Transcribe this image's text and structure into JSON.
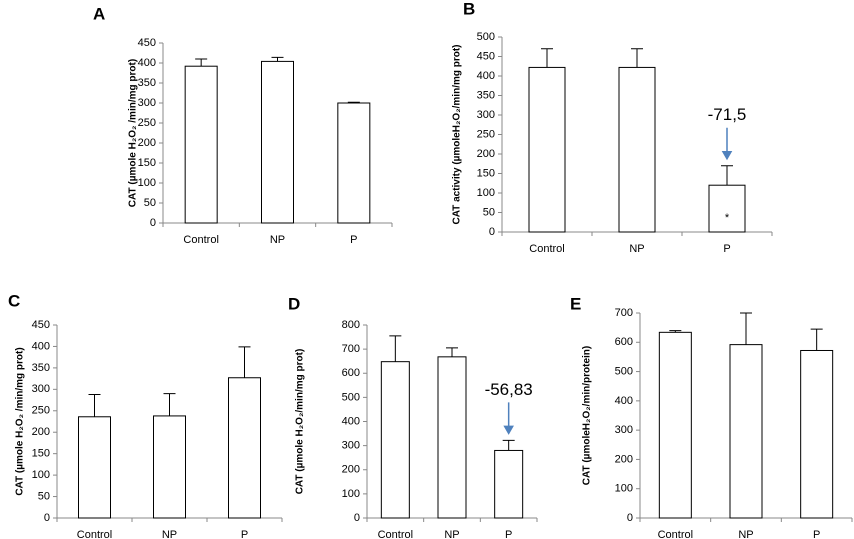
{
  "chart_data": [
    {
      "type": "bar",
      "panel": "A",
      "ylabel": "CAT (µmole H₂O₂ /min/mg prot)",
      "categories": [
        "Control",
        "NP",
        "P"
      ],
      "values": [
        392,
        404,
        300
      ],
      "errors": [
        18,
        10,
        2
      ],
      "color": "#ffffff",
      "ylim": [
        0,
        450
      ],
      "yticks": [
        0,
        50,
        100,
        150,
        200,
        250,
        300,
        350,
        400,
        450
      ]
    },
    {
      "type": "bar",
      "panel": "B",
      "ylabel": "CAT activity (µmoleH₂O₂/min/mg prot)",
      "categories": [
        "Control",
        "NP",
        "P"
      ],
      "values": [
        422,
        422,
        120
      ],
      "errors": [
        48,
        48,
        50
      ],
      "color": "#ffffff",
      "ylim": [
        0,
        500
      ],
      "yticks": [
        0,
        50,
        100,
        150,
        200,
        250,
        300,
        350,
        400,
        450,
        500
      ],
      "annotation": "-71,5",
      "annotation_color": "#4f81bd",
      "significance": "*"
    },
    {
      "type": "bar",
      "panel": "C",
      "ylabel": "CAT (µmole H₂O₂ /min/mg prot)",
      "categories": [
        "Control",
        "NP",
        "P"
      ],
      "values": [
        236,
        238,
        327
      ],
      "errors": [
        52,
        52,
        72
      ],
      "color": "#ffffff",
      "ylim": [
        0,
        450
      ],
      "yticks": [
        0,
        50,
        100,
        150,
        200,
        250,
        300,
        350,
        400,
        450
      ]
    },
    {
      "type": "bar",
      "panel": "D",
      "ylabel": "CAT (µmole H₂O₂/min/mg prot)",
      "categories": [
        "Control",
        "NP",
        "P"
      ],
      "values": [
        648,
        668,
        280
      ],
      "errors": [
        107,
        37,
        42
      ],
      "color": "#ffffff",
      "ylim": [
        0,
        800
      ],
      "yticks": [
        0,
        100,
        200,
        300,
        400,
        500,
        600,
        700,
        800
      ],
      "annotation": "-56,83",
      "annotation_color": "#4f81bd"
    },
    {
      "type": "bar",
      "panel": "E",
      "ylabel": "CAT (µmoleH₂O₂/min/protein)",
      "categories": [
        "Control",
        "NP",
        "P"
      ],
      "values": [
        634,
        592,
        572
      ],
      "errors": [
        6,
        108,
        73
      ],
      "color": "#ffffff",
      "ylim": [
        0,
        700
      ],
      "yticks": [
        0,
        100,
        200,
        300,
        400,
        500,
        600,
        700
      ]
    }
  ]
}
